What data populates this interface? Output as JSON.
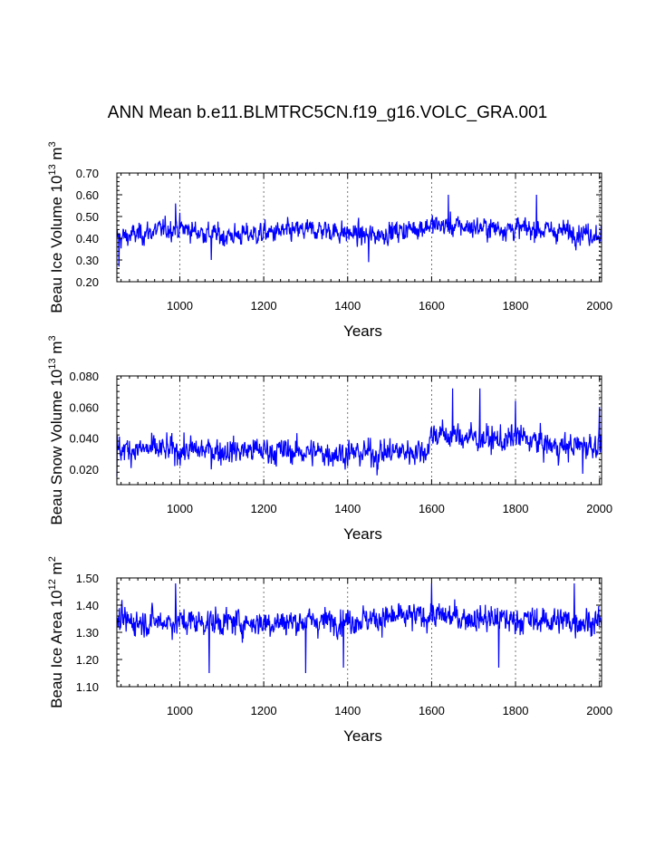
{
  "title": "ANN Mean b.e11.BLMTRC5CN.f19_g16.VOLC_GRA.001",
  "line_color": "#0000ff",
  "chart_data": [
    {
      "type": "line",
      "ylabel_main": "Beau Ice Volume 10",
      "ylabel_exp": "13",
      "ylabel_unit": "m",
      "ylabel_unit_exp": "3",
      "xlabel": "Years",
      "xlim": [
        850,
        2005
      ],
      "ylim": [
        0.2,
        0.7
      ],
      "yticks": [
        0.2,
        0.3,
        0.4,
        0.5,
        0.6,
        0.7
      ],
      "ytick_labels": [
        "0.20",
        "0.30",
        "0.40",
        "0.50",
        "0.60",
        "0.70"
      ],
      "xticks": [
        1000,
        1200,
        1400,
        1600,
        1800,
        2000
      ],
      "xtick_labels": [
        "1000",
        "1200",
        "1400",
        "1600",
        "1800",
        "2000"
      ],
      "grid_x": [
        1000,
        1200,
        1400,
        1600,
        1800,
        2000
      ],
      "series_summary": {
        "mean": 0.42,
        "min": 0.27,
        "max": 0.6,
        "segments": [
          [
            850,
            0.4
          ],
          [
            990,
            0.45
          ],
          [
            1100,
            0.41
          ],
          [
            1340,
            0.44
          ],
          [
            1450,
            0.41
          ],
          [
            1600,
            0.46
          ],
          [
            1700,
            0.45
          ],
          [
            1850,
            0.44
          ],
          [
            2005,
            0.42
          ]
        ],
        "peaks": [
          [
            990,
            0.56
          ],
          [
            1640,
            0.6
          ],
          [
            1850,
            0.6
          ]
        ],
        "troughs": [
          [
            855,
            0.27
          ],
          [
            1075,
            0.3
          ],
          [
            1450,
            0.29
          ]
        ]
      }
    },
    {
      "type": "line",
      "ylabel_main": "Beau Snow Volume 10",
      "ylabel_exp": "13",
      "ylabel_unit": "m",
      "ylabel_unit_exp": "3",
      "xlabel": "Years",
      "xlim": [
        850,
        2005
      ],
      "ylim": [
        0.01,
        0.08
      ],
      "yticks": [
        0.02,
        0.04,
        0.06,
        0.08
      ],
      "ytick_labels": [
        "0.020",
        "0.040",
        "0.060",
        "0.080"
      ],
      "xticks": [
        1000,
        1200,
        1400,
        1600,
        1800,
        2000
      ],
      "xtick_labels": [
        "1000",
        "1200",
        "1400",
        "1600",
        "1800",
        "2000"
      ],
      "grid_x": [
        1000,
        1200,
        1400,
        1600,
        1800,
        2000
      ],
      "series_summary": {
        "mean": 0.033,
        "min": 0.015,
        "max": 0.072,
        "segments": [
          [
            850,
            0.033
          ],
          [
            1000,
            0.032
          ],
          [
            1200,
            0.032
          ],
          [
            1400,
            0.03
          ],
          [
            1590,
            0.032
          ],
          [
            1600,
            0.043
          ],
          [
            1780,
            0.038
          ],
          [
            1800,
            0.041
          ],
          [
            1900,
            0.034
          ],
          [
            2005,
            0.036
          ]
        ],
        "peaks": [
          [
            1650,
            0.072
          ],
          [
            1715,
            0.072
          ],
          [
            1800,
            0.064
          ],
          [
            2000,
            0.06
          ]
        ],
        "troughs": [
          [
            850,
            0.015
          ],
          [
            1470,
            0.016
          ],
          [
            1960,
            0.017
          ]
        ]
      }
    },
    {
      "type": "line",
      "ylabel_main": "Beau Ice Area 10",
      "ylabel_exp": "12",
      "ylabel_unit": "m",
      "ylabel_unit_exp": "2",
      "xlabel": "Years",
      "xlim": [
        850,
        2005
      ],
      "ylim": [
        1.1,
        1.5
      ],
      "yticks": [
        1.1,
        1.2,
        1.3,
        1.4,
        1.5
      ],
      "ytick_labels": [
        "1.10",
        "1.20",
        "1.30",
        "1.40",
        "1.50"
      ],
      "xticks": [
        1000,
        1200,
        1400,
        1600,
        1800,
        2000
      ],
      "xtick_labels": [
        "1000",
        "1200",
        "1400",
        "1600",
        "1800",
        "2000"
      ],
      "grid_x": [
        1000,
        1200,
        1400,
        1600,
        1800,
        2000
      ],
      "series_summary": {
        "mean": 1.345,
        "min": 1.15,
        "max": 1.48,
        "segments": [
          [
            850,
            1.34
          ],
          [
            1000,
            1.34
          ],
          [
            1200,
            1.335
          ],
          [
            1400,
            1.345
          ],
          [
            1600,
            1.36
          ],
          [
            1800,
            1.345
          ],
          [
            2005,
            1.34
          ]
        ],
        "peaks": [
          [
            990,
            1.48
          ],
          [
            1600,
            1.48
          ],
          [
            1940,
            1.48
          ]
        ],
        "troughs": [
          [
            1070,
            1.15
          ],
          [
            1300,
            1.15
          ],
          [
            1390,
            1.17
          ],
          [
            1760,
            1.17
          ]
        ]
      }
    }
  ]
}
